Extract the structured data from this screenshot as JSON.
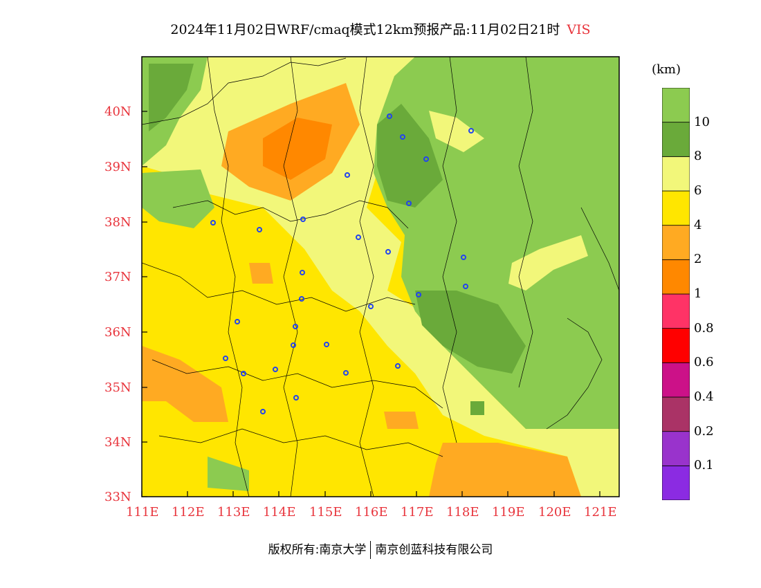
{
  "title": "2024年11月02日WRF/cmaq模式12km预报产品:11月02日21时",
  "variable": "VIS",
  "unit": "(km)",
  "colorbar": {
    "colors": [
      "#8b2be2",
      "#9933cc",
      "#aa3366",
      "#cc1188",
      "#ff0000",
      "#ff3366",
      "#ff8800",
      "#ffaa22",
      "#ffe600",
      "#f2f77a",
      "#6aaa3a",
      "#8ccb50"
    ],
    "labels": [
      "0.1",
      "0.2",
      "0.4",
      "0.6",
      "0.8",
      "1",
      "2",
      "4",
      "6",
      "8",
      "10"
    ]
  },
  "axes": {
    "lat_labels": [
      "40N",
      "39N",
      "38N",
      "37N",
      "36N",
      "35N",
      "34N",
      "33N"
    ],
    "lon_labels": [
      "111E",
      "112E",
      "113E",
      "114E",
      "115E",
      "116E",
      "117E",
      "118E",
      "119E",
      "120E",
      "121E"
    ]
  },
  "footer": {
    "left": "版权所有:南京大学",
    "right": "南京创蓝科技有限公司"
  }
}
